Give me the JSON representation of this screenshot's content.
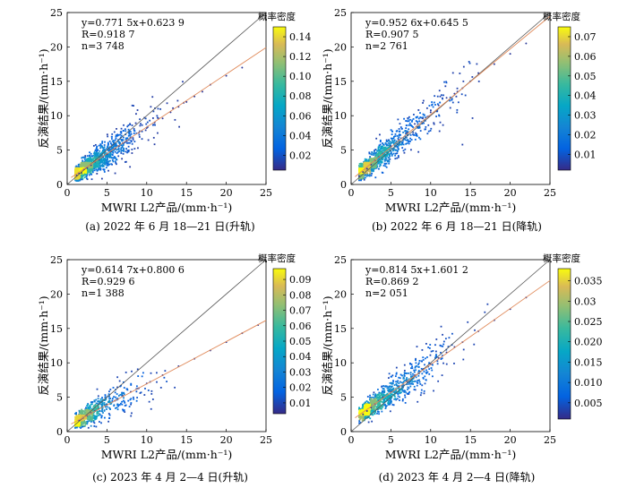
{
  "figure": {
    "panels": [
      {
        "id": "a",
        "caption": "(a) 2022 年 6 月 18—21 日(升轨)",
        "colorbar_title": "概率密度",
        "equation": "y=0.771 5x+0.623 9",
        "r_text": "R=0.918 7",
        "n_text": "n=3 748"
      },
      {
        "id": "b",
        "caption": "(b) 2022 年 6 月 18—21 日(降轨)",
        "colorbar_title": "概率密度",
        "equation": "y=0.952 6x+0.645 5",
        "r_text": "R=0.907 5",
        "n_text": "n=2 761"
      },
      {
        "id": "c",
        "caption": "(c) 2023 年 4 月 2—4 日(升轨)",
        "colorbar_title": "概率密度",
        "equation": "y=0.614 7x+0.800 6",
        "r_text": "R=0.929 6",
        "n_text": "n=1 388"
      },
      {
        "id": "d",
        "caption": "(d) 2023 年 4 月 2—4 日(降轨)",
        "colorbar_title": "概率密度",
        "equation": "y=0.814 5x+1.601 2",
        "r_text": "R=0.869 2",
        "n_text": "n=2 051"
      }
    ]
  },
  "chart_data": [
    {
      "type": "scatter",
      "xlabel": "MWRI L2产品/(mm·h⁻¹)",
      "ylabel": "反演结果/(mm·h⁻¹)",
      "xlim": [
        0,
        25
      ],
      "ylim": [
        0,
        25
      ],
      "xticks": [
        0,
        5,
        10,
        15,
        20,
        25
      ],
      "yticks": [
        0,
        5,
        10,
        15,
        20,
        25
      ],
      "fit": {
        "slope": 0.7715,
        "intercept": 0.6239,
        "R": 0.9187,
        "n": 3748
      },
      "colorbar": {
        "label": "概率密度",
        "ticks": [
          0.02,
          0.04,
          0.06,
          0.08,
          0.1,
          0.12,
          0.14
        ],
        "range": [
          0.005,
          0.15
        ]
      },
      "points": [
        [
          1.2,
          1.3
        ],
        [
          1.5,
          1.6
        ],
        [
          1.8,
          1.7
        ],
        [
          2.1,
          2.2
        ],
        [
          2.5,
          2.4
        ],
        [
          3.0,
          2.8
        ],
        [
          3.5,
          3.3
        ],
        [
          4.0,
          3.6
        ],
        [
          4.5,
          4.0
        ],
        [
          5.0,
          4.4
        ],
        [
          5.5,
          4.8
        ],
        [
          6.0,
          5.2
        ],
        [
          6.5,
          5.6
        ],
        [
          7.0,
          6.0
        ],
        [
          7.5,
          6.3
        ],
        [
          8.0,
          6.8
        ],
        [
          9.0,
          7.5
        ],
        [
          10.0,
          8.2
        ],
        [
          11.0,
          9.0
        ],
        [
          12.0,
          9.6
        ],
        [
          13.0,
          10.5
        ],
        [
          14.0,
          11.3
        ],
        [
          15.0,
          12.0
        ],
        [
          16.0,
          12.8
        ],
        [
          17.0,
          13.5
        ],
        [
          18.0,
          14.5
        ],
        [
          20.0,
          15.8
        ],
        [
          22.0,
          17.0
        ]
      ]
    },
    {
      "type": "scatter",
      "xlabel": "MWRI L2产品/(mm·h⁻¹)",
      "ylabel": "反演结果/(mm·h⁻¹)",
      "xlim": [
        0,
        25
      ],
      "ylim": [
        0,
        25
      ],
      "xticks": [
        0,
        5,
        10,
        15,
        20,
        25
      ],
      "yticks": [
        0,
        5,
        10,
        15,
        20,
        25
      ],
      "fit": {
        "slope": 0.9526,
        "intercept": 0.6455,
        "R": 0.9075,
        "n": 2761
      },
      "colorbar": {
        "label": "概率密度",
        "ticks": [
          0.01,
          0.02,
          0.03,
          0.04,
          0.05,
          0.06,
          0.07
        ],
        "range": [
          0.002,
          0.075
        ]
      },
      "points": [
        [
          1.0,
          1.2
        ],
        [
          1.5,
          1.8
        ],
        [
          2.0,
          2.3
        ],
        [
          2.5,
          2.9
        ],
        [
          3.0,
          3.5
        ],
        [
          3.5,
          4.0
        ],
        [
          4.0,
          4.5
        ],
        [
          5.0,
          5.6
        ],
        [
          6.0,
          6.5
        ],
        [
          7.0,
          7.5
        ],
        [
          8.0,
          8.8
        ],
        [
          9.0,
          9.6
        ],
        [
          10.0,
          10.5
        ],
        [
          11.0,
          11.5
        ],
        [
          12.0,
          12.6
        ],
        [
          13.0,
          13.2
        ],
        [
          14.0,
          14.0
        ],
        [
          15.0,
          15.0
        ],
        [
          16.0,
          16.2
        ],
        [
          18.0,
          17.5
        ],
        [
          20.0,
          19.0
        ],
        [
          22.0,
          20.5
        ]
      ]
    },
    {
      "type": "scatter",
      "xlabel": "MWRI L2产品/(mm·h⁻¹)",
      "ylabel": "反演结果/(mm·h⁻¹)",
      "xlim": [
        0,
        25
      ],
      "ylim": [
        0,
        25
      ],
      "xticks": [
        0,
        5,
        10,
        15,
        20,
        25
      ],
      "yticks": [
        0,
        5,
        10,
        15,
        20,
        25
      ],
      "fit": {
        "slope": 0.6147,
        "intercept": 0.8006,
        "R": 0.9296,
        "n": 1388
      },
      "colorbar": {
        "label": "概率密度",
        "ticks": [
          0.01,
          0.02,
          0.03,
          0.04,
          0.05,
          0.06,
          0.07,
          0.08,
          0.09
        ],
        "range": [
          0.003,
          0.097
        ]
      },
      "points": [
        [
          1.5,
          1.6
        ],
        [
          2.0,
          2.0
        ],
        [
          2.5,
          2.3
        ],
        [
          3.0,
          2.7
        ],
        [
          3.5,
          3.0
        ],
        [
          4.0,
          3.3
        ],
        [
          5.0,
          3.9
        ],
        [
          6.0,
          4.5
        ],
        [
          7.0,
          5.2
        ],
        [
          8.0,
          5.8
        ],
        [
          9.0,
          6.3
        ],
        [
          10.0,
          7.0
        ],
        [
          12.0,
          8.2
        ],
        [
          14.0,
          9.5
        ],
        [
          16.0,
          10.6
        ],
        [
          18.0,
          11.8
        ],
        [
          20.0,
          13.0
        ],
        [
          22.0,
          14.3
        ],
        [
          24.0,
          15.5
        ]
      ]
    },
    {
      "type": "scatter",
      "xlabel": "MWRI L2产品/(mm·h⁻¹)",
      "ylabel": "反演结果/(mm·h⁻¹)",
      "xlim": [
        0,
        25
      ],
      "ylim": [
        0,
        25
      ],
      "xticks": [
        0,
        5,
        10,
        15,
        20,
        25
      ],
      "yticks": [
        0,
        5,
        10,
        15,
        20,
        25
      ],
      "fit": {
        "slope": 0.8145,
        "intercept": 1.6012,
        "R": 0.8692,
        "n": 2051
      },
      "colorbar": {
        "label": "概率密度",
        "ticks": [
          0.005,
          0.01,
          0.015,
          0.02,
          0.025,
          0.03,
          0.035
        ],
        "range": [
          0.001,
          0.038
        ]
      },
      "points": [
        [
          1.5,
          2.5
        ],
        [
          2.0,
          3.0
        ],
        [
          2.5,
          3.5
        ],
        [
          3.0,
          4.0
        ],
        [
          3.5,
          4.5
        ],
        [
          4.0,
          5.0
        ],
        [
          5.0,
          5.8
        ],
        [
          6.0,
          6.5
        ],
        [
          7.0,
          7.3
        ],
        [
          8.0,
          8.2
        ],
        [
          9.0,
          9.0
        ],
        [
          10.0,
          9.8
        ],
        [
          11.0,
          10.7
        ],
        [
          12.0,
          11.5
        ],
        [
          13.0,
          12.3
        ],
        [
          14.0,
          13.0
        ],
        [
          16.0,
          14.6
        ],
        [
          18.0,
          16.2
        ],
        [
          20.0,
          17.8
        ],
        [
          22.0,
          19.5
        ]
      ]
    }
  ]
}
